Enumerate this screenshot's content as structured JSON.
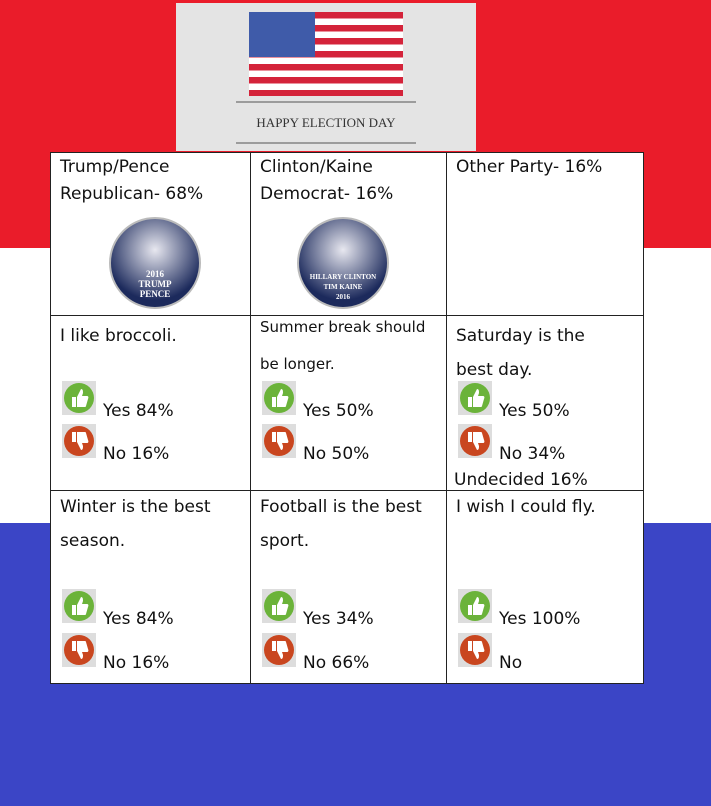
{
  "header": {
    "title": "HAPPY ELECTION DAY"
  },
  "table": {
    "rows": [
      [
        {
          "question": [
            "Trump/Pence",
            "Republican- 68%"
          ],
          "badge": [
            "2016",
            "TRUMP",
            "PENCE"
          ]
        },
        {
          "question": [
            "Clinton/Kaine",
            "Democrat- 16%"
          ],
          "badge": [
            "HILLARY CLINTON",
            "TIM KAINE",
            "2016"
          ]
        },
        {
          "question": [
            "Other Party- 16%"
          ]
        }
      ],
      [
        {
          "question": [
            "I like broccoli."
          ],
          "yes": "Yes 84%",
          "no": "No 16%"
        },
        {
          "question": [
            "Summer break should",
            "be longer."
          ],
          "yes": "Yes 50%",
          "no": "No 50%"
        },
        {
          "question": [
            "Saturday is the",
            "best day."
          ],
          "yes": "Yes 50%",
          "no": "No 34%",
          "extra": "Undecided 16%"
        }
      ],
      [
        {
          "question": [
            "Winter is the best",
            "season."
          ],
          "yes": "Yes 84%",
          "no": "No 16%"
        },
        {
          "question": [
            "Football is the best",
            "sport."
          ],
          "yes": "Yes 34%",
          "no": "No 66%"
        },
        {
          "question": [
            "I wish I could fly."
          ],
          "yes": "Yes 100%",
          "no": "No"
        }
      ]
    ]
  }
}
